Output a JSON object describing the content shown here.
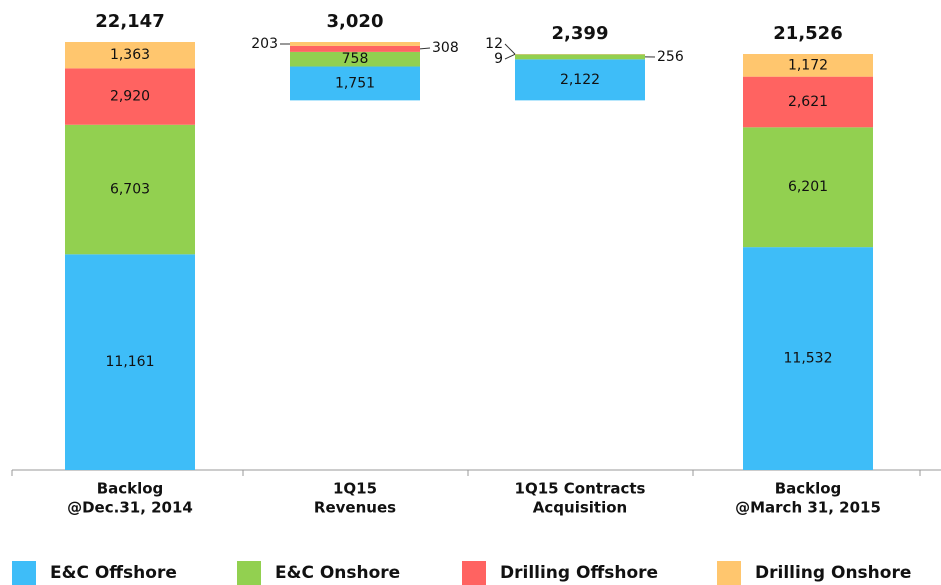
{
  "chart_data": {
    "type": "waterfall",
    "categories": [
      [
        "Backlog",
        "@Dec.31, 2014"
      ],
      [
        "1Q15",
        "Revenues"
      ],
      [
        "1Q15 Contracts",
        "Acquisition"
      ],
      [
        "Backlog",
        "@March 31, 2015"
      ]
    ],
    "measures": [
      "total",
      "decrease",
      "increase",
      "total"
    ],
    "totals": [
      22147,
      3020,
      2399,
      21526
    ],
    "total_labels": [
      "22,147",
      "3,020",
      "2,399",
      "21,526"
    ],
    "series": [
      {
        "name": "E&C Offshore",
        "color": "#3ebdf8",
        "values": [
          11161,
          1751,
          2122,
          11532
        ],
        "value_labels": [
          "11,161",
          "1,751",
          "2,122",
          "11,532"
        ]
      },
      {
        "name": "E&C Onshore",
        "color": "#92d050",
        "values": [
          6703,
          758,
          256,
          6201
        ],
        "value_labels": [
          "6,703",
          "758",
          "256",
          "6,201"
        ]
      },
      {
        "name": "Drilling Offshore",
        "color": "#ff6361",
        "values": [
          2920,
          308,
          9,
          2621
        ],
        "value_labels": [
          "2,920",
          "308",
          "9",
          "2,621"
        ]
      },
      {
        "name": "Drilling Onshore",
        "color": "#ffc66e",
        "values": [
          1363,
          203,
          12,
          1172
        ],
        "value_labels": [
          "1,363",
          "203",
          "12",
          "1,172"
        ]
      }
    ]
  }
}
